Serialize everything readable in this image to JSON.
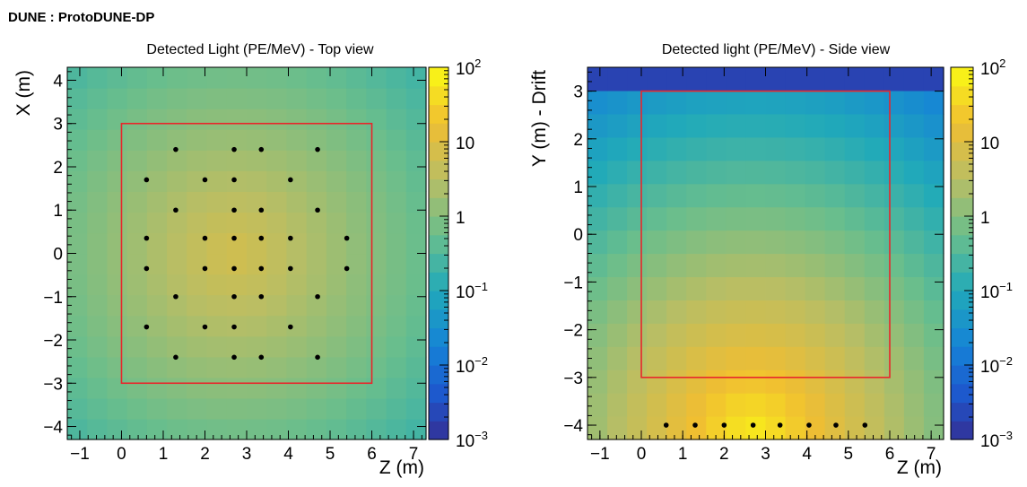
{
  "figure_title": "DUNE : ProtoDUNE-DP",
  "chart_data": [
    {
      "type": "heatmap",
      "title": "Detected Light (PE/MeV) - Top view",
      "xlabel": "Z (m)",
      "ylabel": "X (m)",
      "xlim": [
        -1.3,
        7.3
      ],
      "ylim": [
        -4.3,
        4.3
      ],
      "xticks": [
        -1,
        0,
        1,
        2,
        3,
        4,
        5,
        6,
        7
      ],
      "yticks": [
        -4,
        -3,
        -2,
        -1,
        0,
        1,
        2,
        3,
        4
      ],
      "colorbar": {
        "scale": "log",
        "range": [
          0.001,
          100
        ],
        "ticks": [
          {
            "base": "10",
            "exp": "−3"
          },
          {
            "base": "10",
            "exp": "−2"
          },
          {
            "base": "10",
            "exp": "−1"
          },
          {
            "base": "1",
            "exp": ""
          },
          {
            "base": "10",
            "exp": ""
          },
          {
            "base": "10",
            "exp": "2"
          }
        ]
      },
      "cells": {
        "nx": 18,
        "ny": 18,
        "center": [
          2.7,
          0
        ],
        "peak_log10": 0.85,
        "falloff_per_m": 0.25,
        "log_floor": -1.5
      },
      "fiducial_box": {
        "x": [
          0,
          6
        ],
        "y": [
          -3,
          3
        ],
        "color": "#e8262b"
      },
      "pmts": [
        [
          1.3,
          2.4
        ],
        [
          2.7,
          2.4
        ],
        [
          3.35,
          2.4
        ],
        [
          4.7,
          2.4
        ],
        [
          0.6,
          1.7
        ],
        [
          2.0,
          1.7
        ],
        [
          2.7,
          1.7
        ],
        [
          4.05,
          1.7
        ],
        [
          1.3,
          1.0
        ],
        [
          2.7,
          1.0
        ],
        [
          3.35,
          1.0
        ],
        [
          4.7,
          1.0
        ],
        [
          0.6,
          0.35
        ],
        [
          2.0,
          0.35
        ],
        [
          2.7,
          0.35
        ],
        [
          3.35,
          0.35
        ],
        [
          4.05,
          0.35
        ],
        [
          5.4,
          0.35
        ],
        [
          0.6,
          -0.35
        ],
        [
          2.0,
          -0.35
        ],
        [
          2.7,
          -0.35
        ],
        [
          3.35,
          -0.35
        ],
        [
          4.05,
          -0.35
        ],
        [
          5.4,
          -0.35
        ],
        [
          1.3,
          -1.0
        ],
        [
          2.7,
          -1.0
        ],
        [
          3.35,
          -1.0
        ],
        [
          4.7,
          -1.0
        ],
        [
          0.6,
          -1.7
        ],
        [
          2.0,
          -1.7
        ],
        [
          2.7,
          -1.7
        ],
        [
          4.05,
          -1.7
        ],
        [
          1.3,
          -2.4
        ],
        [
          2.7,
          -2.4
        ],
        [
          3.35,
          -2.4
        ],
        [
          4.7,
          -2.4
        ]
      ]
    },
    {
      "type": "heatmap",
      "title": "Detected light (PE/MeV) - Side view",
      "xlabel": "Z (m)",
      "ylabel": "Y (m) - Drift",
      "xlim": [
        -1.3,
        7.3
      ],
      "ylim": [
        -4.3,
        3.5
      ],
      "xticks": [
        -1,
        0,
        1,
        2,
        3,
        4,
        5,
        6,
        7
      ],
      "yticks": [
        -4,
        -3,
        -2,
        -1,
        0,
        1,
        2,
        3
      ],
      "colorbar": {
        "scale": "log",
        "range": [
          0.001,
          100
        ],
        "ticks": [
          {
            "base": "10",
            "exp": "−3"
          },
          {
            "base": "10",
            "exp": "−2"
          },
          {
            "base": "10",
            "exp": "−1"
          },
          {
            "base": "1",
            "exp": ""
          },
          {
            "base": "10",
            "exp": ""
          },
          {
            "base": "10",
            "exp": "2"
          }
        ]
      },
      "cells": {
        "nx": 18,
        "ny": 16,
        "center": [
          2.7,
          -4.3
        ],
        "peak_log10": 1.85,
        "falloff_per_m": 0.42,
        "log_floor": -3.0,
        "top_row_log10": -2.7
      },
      "fiducial_box": {
        "x": [
          0,
          6
        ],
        "y": [
          -3,
          3
        ],
        "color": "#e8262b"
      },
      "pmts": [
        [
          0.6,
          -4.0
        ],
        [
          1.3,
          -4.0
        ],
        [
          2.0,
          -4.0
        ],
        [
          2.7,
          -4.0
        ],
        [
          3.35,
          -4.0
        ],
        [
          4.05,
          -4.0
        ],
        [
          4.7,
          -4.0
        ],
        [
          5.4,
          -4.0
        ]
      ]
    }
  ]
}
